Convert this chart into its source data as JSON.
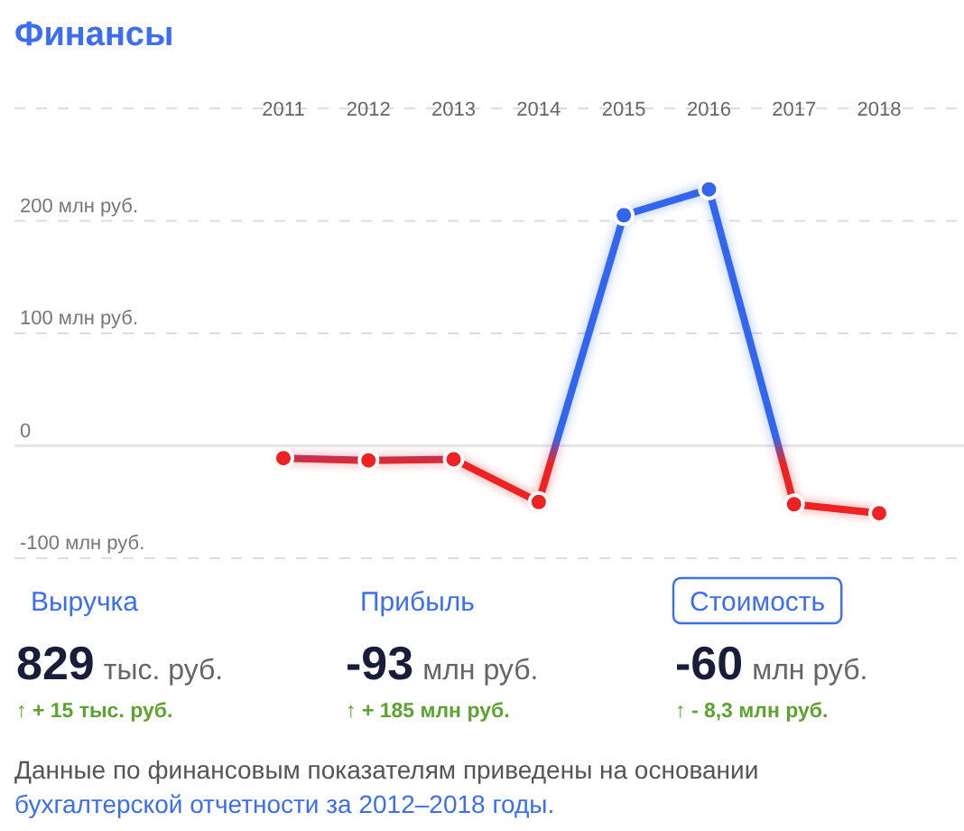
{
  "chart_data": [
    {
      "type": "line",
      "title": "Финансы",
      "categories": [
        "2011",
        "2012",
        "2013",
        "2014",
        "2015",
        "2016",
        "2017",
        "2018"
      ],
      "series": [
        {
          "colors": [
            "#ee2222",
            "#ee2222",
            "#ee2222",
            "#ee2222",
            "#3366ee",
            "#3366ee",
            "#ee2222",
            "#ee2222"
          ],
          "values": [
            -11,
            -13,
            -12,
            -50,
            205,
            228,
            -52,
            -60
          ]
        }
      ],
      "ylim": [
        -100,
        300
      ],
      "yticks": [
        {
          "value": -100,
          "label": "-100 млн руб."
        },
        0,
        {
          "value": 100,
          "label": "100 млн руб."
        },
        {
          "value": 200,
          "label": "200 млн руб."
        },
        {
          "value": 300,
          "label": null
        }
      ],
      "grid": "y",
      "ref_lines": [
        {
          "axis": "y",
          "value": 0,
          "color": "#e6e6e6",
          "line_style": "solid"
        }
      ],
      "marker": "circle",
      "line_style": "solid",
      "annotations": [
        "Данные по финансовым показателям приведены на основании",
        "бухгалтерской отчетности за 2012–2018 годы."
      ]
    },
    {
      "type": "other",
      "title": "Выручка",
      "annotations": [
        "829",
        "тыс. руб.",
        "↑ + 15 тыс. руб."
      ]
    },
    {
      "type": "other",
      "title": "Прибыль",
      "annotations": [
        "-93",
        "млн руб.",
        "↑ + 185 млн руб."
      ]
    },
    {
      "type": "other",
      "title": "Стоимость",
      "annotations": [
        "-60",
        "млн руб.",
        "↑ - 8,3 млн руб."
      ]
    }
  ]
}
